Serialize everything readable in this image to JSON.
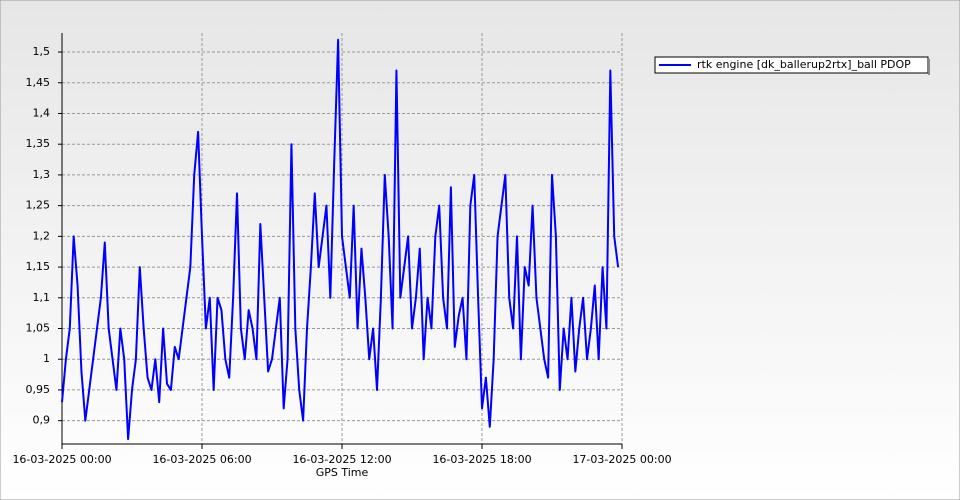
{
  "chart_data": {
    "type": "line",
    "x_label": "GPS Time",
    "x": [
      0,
      10,
      20,
      30,
      40,
      50,
      60,
      70,
      80,
      90,
      100,
      110,
      120,
      130,
      140,
      150,
      160,
      170,
      180,
      190,
      200,
      210,
      220,
      230,
      240,
      250,
      260,
      270,
      280,
      290,
      300,
      310,
      320,
      330,
      340,
      350,
      360,
      370,
      380,
      390,
      400,
      410,
      420,
      430,
      440,
      450,
      460,
      470,
      480,
      490,
      500,
      510,
      520,
      530,
      540,
      550,
      560,
      570,
      580,
      590,
      600,
      610,
      620,
      630,
      640,
      650,
      660,
      670,
      680,
      690,
      700,
      710,
      720,
      730,
      740,
      750,
      760,
      770,
      780,
      790,
      800,
      810,
      820,
      830,
      840,
      850,
      860,
      870,
      880,
      890,
      900,
      910,
      920,
      930,
      940,
      950,
      960,
      970,
      980,
      990,
      1000,
      1010,
      1020,
      1030,
      1040,
      1050,
      1060,
      1070,
      1080,
      1090,
      1100,
      1110,
      1120,
      1130,
      1140,
      1150,
      1160,
      1170,
      1180,
      1190,
      1200,
      1210,
      1220,
      1230,
      1240,
      1250,
      1260,
      1270,
      1280,
      1290,
      1300,
      1310,
      1320,
      1330,
      1340,
      1350,
      1360,
      1370,
      1380,
      1390,
      1400,
      1410,
      1420,
      1430
    ],
    "series": [
      {
        "name": "rtk engine [dk_ballerup2rtx]_ball PDOP",
        "color": "#0000ff",
        "values": [
          0.93,
          1.0,
          1.05,
          1.2,
          1.12,
          0.98,
          0.9,
          0.95,
          1.0,
          1.05,
          1.1,
          1.19,
          1.05,
          1.0,
          0.95,
          1.05,
          1.0,
          0.87,
          0.95,
          1.0,
          1.15,
          1.05,
          0.97,
          0.95,
          1.0,
          0.93,
          1.05,
          0.96,
          0.95,
          1.02,
          1.0,
          1.05,
          1.1,
          1.15,
          1.3,
          1.37,
          1.2,
          1.05,
          1.1,
          0.95,
          1.1,
          1.08,
          1.0,
          0.97,
          1.1,
          1.27,
          1.05,
          1.0,
          1.08,
          1.05,
          1.0,
          1.22,
          1.1,
          0.98,
          1.0,
          1.05,
          1.1,
          0.92,
          1.0,
          1.35,
          1.05,
          0.95,
          0.9,
          1.05,
          1.15,
          1.27,
          1.15,
          1.2,
          1.25,
          1.1,
          1.32,
          1.52,
          1.2,
          1.15,
          1.1,
          1.25,
          1.05,
          1.18,
          1.1,
          1.0,
          1.05,
          0.95,
          1.1,
          1.3,
          1.2,
          1.05,
          1.47,
          1.1,
          1.15,
          1.2,
          1.05,
          1.1,
          1.18,
          1.0,
          1.1,
          1.05,
          1.2,
          1.25,
          1.1,
          1.05,
          1.28,
          1.02,
          1.07,
          1.1,
          1.0,
          1.25,
          1.3,
          1.1,
          0.92,
          0.97,
          0.89,
          1.0,
          1.2,
          1.25,
          1.3,
          1.1,
          1.05,
          1.2,
          1.0,
          1.15,
          1.12,
          1.25,
          1.1,
          1.05,
          1.0,
          0.97,
          1.3,
          1.2,
          0.95,
          1.05,
          1.0,
          1.1,
          0.98,
          1.05,
          1.1,
          1.0,
          1.05,
          1.12,
          1.0,
          1.15,
          1.05,
          1.47,
          1.2,
          1.15
        ]
      }
    ],
    "xlim": [
      0,
      1440
    ],
    "xticks": [
      {
        "value": 0,
        "label": "16-03-2025 00:00"
      },
      {
        "value": 360,
        "label": "16-03-2025 06:00"
      },
      {
        "value": 720,
        "label": "16-03-2025 12:00"
      },
      {
        "value": 1080,
        "label": "16-03-2025 18:00"
      },
      {
        "value": 1440,
        "label": "17-03-2025 00:00"
      }
    ],
    "ylim": [
      0.862,
      1.531
    ],
    "yticks": [
      {
        "value": 0.9,
        "label": "0,9"
      },
      {
        "value": 0.95,
        "label": "0,95"
      },
      1,
      {
        "value": 1.05,
        "label": "1,05"
      },
      {
        "value": 1.1,
        "label": "1,1"
      },
      {
        "value": 1.15,
        "label": "1,15"
      },
      {
        "value": 1.2,
        "label": "1,2"
      },
      {
        "value": 1.25,
        "label": "1,25"
      },
      {
        "value": 1.3,
        "label": "1,3"
      },
      {
        "value": 1.35,
        "label": "1,35"
      },
      {
        "value": 1.4,
        "label": "1,4"
      },
      {
        "value": 1.45,
        "label": "1,45"
      },
      {
        "value": 1.5,
        "label": "1,5"
      }
    ],
    "grid": true,
    "legend": "top-right"
  }
}
